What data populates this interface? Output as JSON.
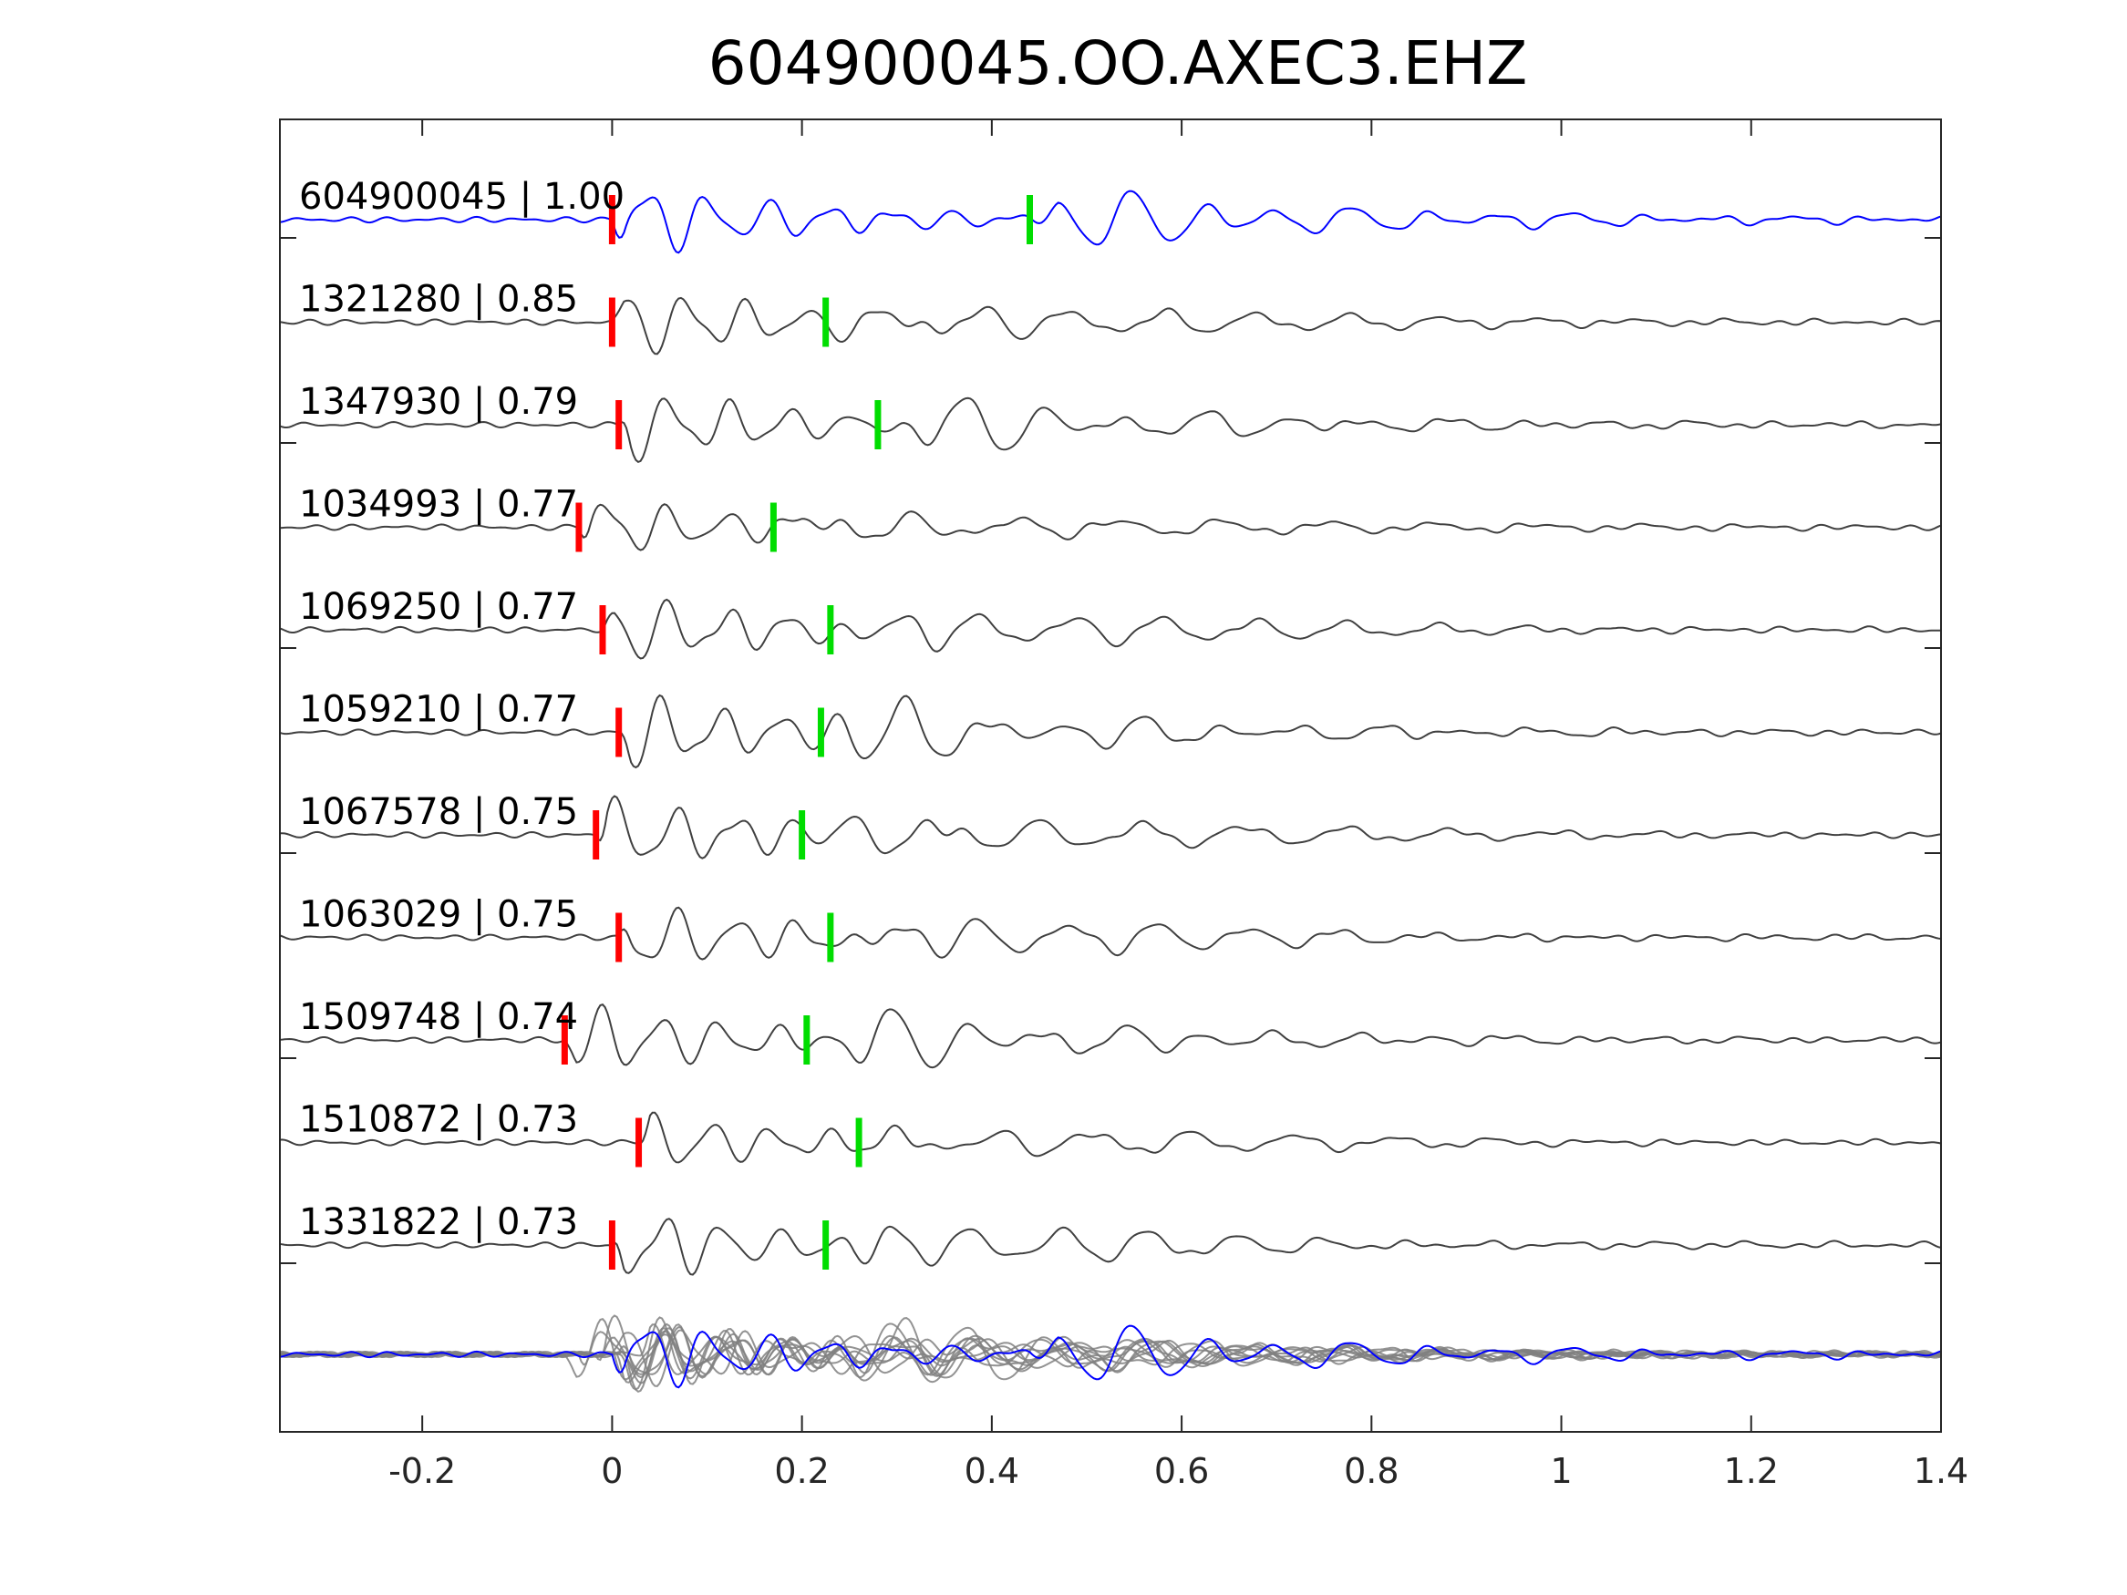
{
  "chart_data": {
    "type": "line",
    "title": "604900045.OO.AXEC3.EHZ",
    "xlabel": "",
    "ylabel": "",
    "xlim": [
      -0.35,
      1.4
    ],
    "xticks": [
      -0.2,
      0,
      0.2,
      0.4,
      0.6,
      0.8,
      1,
      1.2,
      1.4
    ],
    "xtick_labels": [
      "-0.2",
      "0",
      "0.2",
      "0.4",
      "0.6",
      "0.8",
      "1",
      "1.2",
      "1.4"
    ],
    "grid": false,
    "colors": {
      "primary_trace": "#0000ff",
      "comparison_trace": "#404040",
      "stack_trace": "#808080",
      "p_pick": "#ff0000",
      "s_pick": "#00dd00",
      "axes": "#262626"
    },
    "series": [
      {
        "name": "604900045 | 1.00",
        "label": "604900045 | 1.00",
        "p_pick": 0.0,
        "s_pick": 0.44,
        "amp": 1.0,
        "primary": true
      },
      {
        "name": "1321280 | 0.85",
        "label": "1321280 | 0.85",
        "p_pick": 0.0,
        "s_pick": 0.225,
        "amp": 0.95,
        "primary": false
      },
      {
        "name": "1347930 | 0.79",
        "label": "1347930 | 0.79",
        "p_pick": 0.007,
        "s_pick": 0.28,
        "amp": 0.95,
        "primary": false
      },
      {
        "name": "1034993 | 0.77",
        "label": "1034993 | 0.77",
        "p_pick": -0.035,
        "s_pick": 0.17,
        "amp": 0.8,
        "primary": false
      },
      {
        "name": "1069250 | 0.77",
        "label": "1069250 | 0.77",
        "p_pick": -0.01,
        "s_pick": 0.23,
        "amp": 0.95,
        "primary": false
      },
      {
        "name": "1059210 | 0.77",
        "label": "1059210 | 0.77",
        "p_pick": 0.007,
        "s_pick": 0.22,
        "amp": 1.0,
        "primary": false
      },
      {
        "name": "1067578 | 0.75",
        "label": "1067578 | 0.75",
        "p_pick": -0.017,
        "s_pick": 0.2,
        "amp": 1.0,
        "primary": false
      },
      {
        "name": "1063029 | 0.75",
        "label": "1063029 | 0.75",
        "p_pick": 0.007,
        "s_pick": 0.23,
        "amp": 0.95,
        "primary": false
      },
      {
        "name": "1509748 | 0.74",
        "label": "1509748 | 0.74",
        "p_pick": -0.05,
        "s_pick": 0.205,
        "amp": 1.0,
        "primary": false
      },
      {
        "name": "1510872 | 0.73",
        "label": "1510872 | 0.73",
        "p_pick": 0.028,
        "s_pick": 0.26,
        "amp": 0.75,
        "primary": false
      },
      {
        "name": "1331822 | 0.73",
        "label": "1331822 | 0.73",
        "p_pick": 0.0,
        "s_pick": 0.225,
        "amp": 0.95,
        "primary": false
      }
    ],
    "stack": {
      "name": "overlay of all traces",
      "primary_color": "#0000ff",
      "other_color": "#808080"
    }
  }
}
